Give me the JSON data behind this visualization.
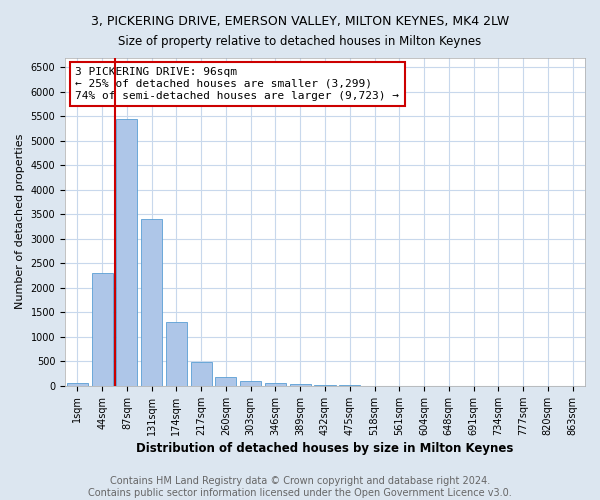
{
  "title": "3, PICKERING DRIVE, EMERSON VALLEY, MILTON KEYNES, MK4 2LW",
  "subtitle": "Size of property relative to detached houses in Milton Keynes",
  "xlabel": "Distribution of detached houses by size in Milton Keynes",
  "ylabel": "Number of detached properties",
  "categories": [
    "1sqm",
    "44sqm",
    "87sqm",
    "131sqm",
    "174sqm",
    "217sqm",
    "260sqm",
    "303sqm",
    "346sqm",
    "389sqm",
    "432sqm",
    "475sqm",
    "518sqm",
    "561sqm",
    "604sqm",
    "648sqm",
    "691sqm",
    "734sqm",
    "777sqm",
    "820sqm",
    "863sqm"
  ],
  "bar_values": [
    60,
    2300,
    5450,
    3400,
    1310,
    480,
    175,
    95,
    60,
    35,
    15,
    10,
    5,
    5,
    3,
    2,
    2,
    1,
    1,
    1,
    1
  ],
  "bar_color": "#aec6e8",
  "bar_edgecolor": "#5a9fd4",
  "vline_color": "#cc0000",
  "ylim": [
    0,
    6700
  ],
  "yticks": [
    0,
    500,
    1000,
    1500,
    2000,
    2500,
    3000,
    3500,
    4000,
    4500,
    5000,
    5500,
    6000,
    6500
  ],
  "annotation_text": "3 PICKERING DRIVE: 96sqm\n← 25% of detached houses are smaller (3,299)\n74% of semi-detached houses are larger (9,723) →",
  "annotation_box_color": "#ffffff",
  "annotation_box_edgecolor": "#cc0000",
  "footer_line1": "Contains HM Land Registry data © Crown copyright and database right 2024.",
  "footer_line2": "Contains public sector information licensed under the Open Government Licence v3.0.",
  "fig_bg_color": "#dce6f0",
  "plot_bg_color": "#ffffff",
  "grid_color": "#c8d8ec",
  "title_fontsize": 9,
  "subtitle_fontsize": 8.5,
  "xlabel_fontsize": 8.5,
  "ylabel_fontsize": 8,
  "tick_fontsize": 7,
  "footer_fontsize": 7
}
